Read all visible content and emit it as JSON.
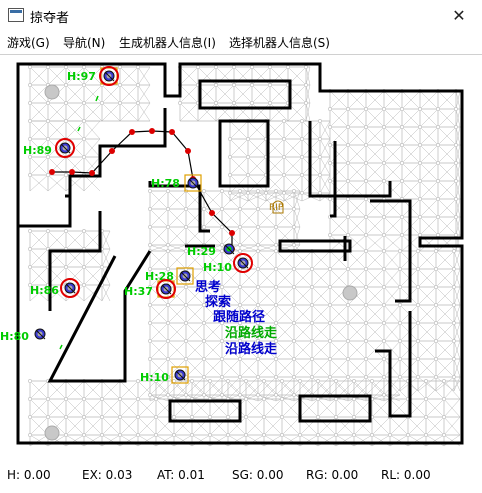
{
  "window": {
    "title": "掠夺者"
  },
  "menu": [
    {
      "label": "游戏(G)",
      "name": "menu-game"
    },
    {
      "label": "导航(N)",
      "name": "menu-navigation"
    },
    {
      "label": "生成机器人信息(I)",
      "name": "menu-bot-info"
    },
    {
      "label": "选择机器人信息(S)",
      "name": "menu-select-info"
    }
  ],
  "colors": {
    "wall": "#000000",
    "graph": "#b9b9b9",
    "health_label": "#00cc00",
    "path": "#000000",
    "path_node": "#dd0000",
    "goal_text": "#0000cc",
    "sub_goal_text": "#00aa00",
    "bot_body": "#3b3bd4",
    "item_health": "#888888",
    "rip": "#aa7700"
  },
  "bots": [
    {
      "name": "bot-1",
      "label": "H:97",
      "selected": false,
      "targeted": true,
      "box": true
    },
    {
      "name": "bot-2",
      "label": "H:89",
      "selected": false,
      "targeted": true,
      "box": false
    },
    {
      "name": "bot-3",
      "label": "H:78",
      "selected": false,
      "targeted": false,
      "box": true
    },
    {
      "name": "bot-4",
      "label": "H:29",
      "selected": true,
      "targeted": false,
      "box": false
    },
    {
      "name": "bot-5",
      "label": "H:10",
      "selected": false,
      "targeted": true,
      "box": false
    },
    {
      "name": "bot-6",
      "label": "H:28",
      "selected": false,
      "targeted": false,
      "box": true
    },
    {
      "name": "bot-7",
      "label": "H:37",
      "selected": false,
      "targeted": true,
      "box": true
    },
    {
      "name": "bot-8",
      "label": "H:86",
      "selected": false,
      "targeted": true,
      "box": false
    },
    {
      "name": "bot-9",
      "label": "H:80",
      "selected": false,
      "targeted": false,
      "box": false
    },
    {
      "name": "bot-10",
      "label": "H:10",
      "selected": false,
      "targeted": false,
      "box": true
    }
  ],
  "goals": [
    {
      "text": "思考",
      "level": 0
    },
    {
      "text": "探索",
      "level": 1
    },
    {
      "text": "跟随路径",
      "level": 2
    },
    {
      "text": "沿路线走",
      "level": 3
    },
    {
      "text": "沿路线走",
      "level": 4
    }
  ],
  "grave": {
    "label": "RIP"
  },
  "status": [
    {
      "label": "H: 0.00",
      "name": "stat-h"
    },
    {
      "label": "EX: 0.03",
      "name": "stat-ex"
    },
    {
      "label": "AT: 0.01",
      "name": "stat-at"
    },
    {
      "label": "SG: 0.00",
      "name": "stat-sg"
    },
    {
      "label": "RG: 0.00",
      "name": "stat-rg"
    },
    {
      "label": "RL: 0.00",
      "name": "stat-rl"
    }
  ]
}
